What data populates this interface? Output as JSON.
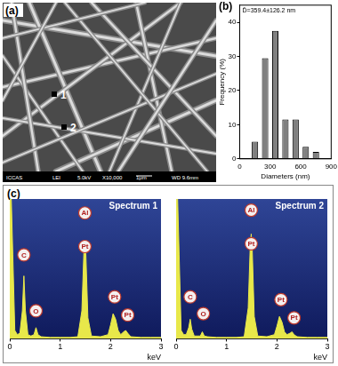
{
  "image": {
    "panel": "(a)",
    "markers": [
      "1",
      "2"
    ],
    "info_bar": [
      "ICCAS",
      "LEI",
      "5.0kV",
      "X10,000",
      "1μm",
      "WD 9.6mm"
    ]
  },
  "chart_data": [
    {
      "type": "histogram",
      "panel": "(b)",
      "annotation": "D̄=359.4±126.2 nm",
      "xlabel": "Diameters (nm)",
      "ylabel": "Frequency (%)",
      "bins": [
        100,
        200,
        300,
        400,
        500,
        600,
        700,
        800
      ],
      "values": [
        5,
        29.5,
        37.5,
        11.5,
        11.5,
        3.5,
        2
      ],
      "color": "#808080",
      "xlim": [
        0,
        900
      ],
      "xticks": [
        0,
        300,
        600,
        900
      ],
      "ylim": [
        0,
        45
      ],
      "yticks": [
        0,
        10,
        20,
        30,
        40
      ],
      "grid": false
    },
    {
      "type": "area",
      "panel": "(c)",
      "title": "Spectrum 1",
      "xlabel": "keV",
      "x": [
        0,
        0.03,
        0.06,
        0.1,
        0.15,
        0.2,
        0.25,
        0.28,
        0.31,
        0.36,
        0.42,
        0.48,
        0.52,
        0.56,
        0.62,
        0.8,
        1.0,
        1.2,
        1.35,
        1.43,
        1.47,
        1.49,
        1.51,
        1.55,
        1.62,
        1.8,
        1.95,
        2.0,
        2.05,
        2.1,
        2.15,
        2.2,
        2.26,
        2.3,
        2.34,
        2.4,
        2.6,
        2.8,
        3.0
      ],
      "values": [
        100,
        100,
        60,
        6,
        3,
        4,
        20,
        45,
        20,
        3,
        2,
        3,
        8,
        3,
        1.5,
        1,
        1,
        1,
        1.5,
        20,
        62,
        70,
        60,
        15,
        2,
        1.5,
        3,
        10,
        18,
        14,
        6,
        3,
        5,
        6,
        4,
        1.5,
        1,
        1,
        1
      ],
      "color": "#e8e84a",
      "xlim": [
        0,
        3
      ],
      "xticks": [
        0,
        1,
        2,
        3
      ],
      "ylim": [
        0,
        100
      ],
      "tick_labels": "x",
      "grid": false,
      "annotations": [
        {
          "text": "C",
          "x": 0.28,
          "y": 60
        },
        {
          "text": "O",
          "x": 0.52,
          "y": 20
        },
        {
          "text": "Al",
          "x": 1.49,
          "y": 90
        },
        {
          "text": "Pt",
          "x": 1.49,
          "y": 66
        },
        {
          "text": "Pt",
          "x": 2.08,
          "y": 30
        },
        {
          "text": "Pt",
          "x": 2.34,
          "y": 17
        }
      ]
    },
    {
      "type": "area",
      "title": "Spectrum 2",
      "xlabel": "keV",
      "x": [
        0,
        0.03,
        0.06,
        0.1,
        0.15,
        0.2,
        0.25,
        0.28,
        0.31,
        0.36,
        0.42,
        0.48,
        0.52,
        0.56,
        0.62,
        0.8,
        1.0,
        1.2,
        1.35,
        1.43,
        1.47,
        1.49,
        1.51,
        1.55,
        1.62,
        1.8,
        1.95,
        2.0,
        2.05,
        2.1,
        2.15,
        2.2,
        2.26,
        2.3,
        2.34,
        2.4,
        2.6,
        2.8,
        3.0
      ],
      "values": [
        100,
        100,
        60,
        6,
        3,
        3,
        8,
        14,
        7,
        2,
        2,
        2,
        5,
        2,
        1.5,
        1,
        1,
        1,
        1.5,
        22,
        66,
        75,
        64,
        16,
        2,
        1.5,
        3,
        9,
        16,
        12,
        5,
        3,
        4,
        5,
        3,
        1.5,
        1,
        1,
        1
      ],
      "color": "#e8e84a",
      "xlim": [
        0,
        3
      ],
      "xticks": [
        0,
        1,
        2,
        3
      ],
      "ylim": [
        0,
        100
      ],
      "tick_labels": "x",
      "grid": false,
      "annotations": [
        {
          "text": "C",
          "x": 0.28,
          "y": 30
        },
        {
          "text": "O",
          "x": 0.54,
          "y": 18
        },
        {
          "text": "Al",
          "x": 1.49,
          "y": 92
        },
        {
          "text": "Pt",
          "x": 1.49,
          "y": 68
        },
        {
          "text": "Pt",
          "x": 2.08,
          "y": 28
        },
        {
          "text": "Pt",
          "x": 2.34,
          "y": 15
        }
      ]
    }
  ]
}
